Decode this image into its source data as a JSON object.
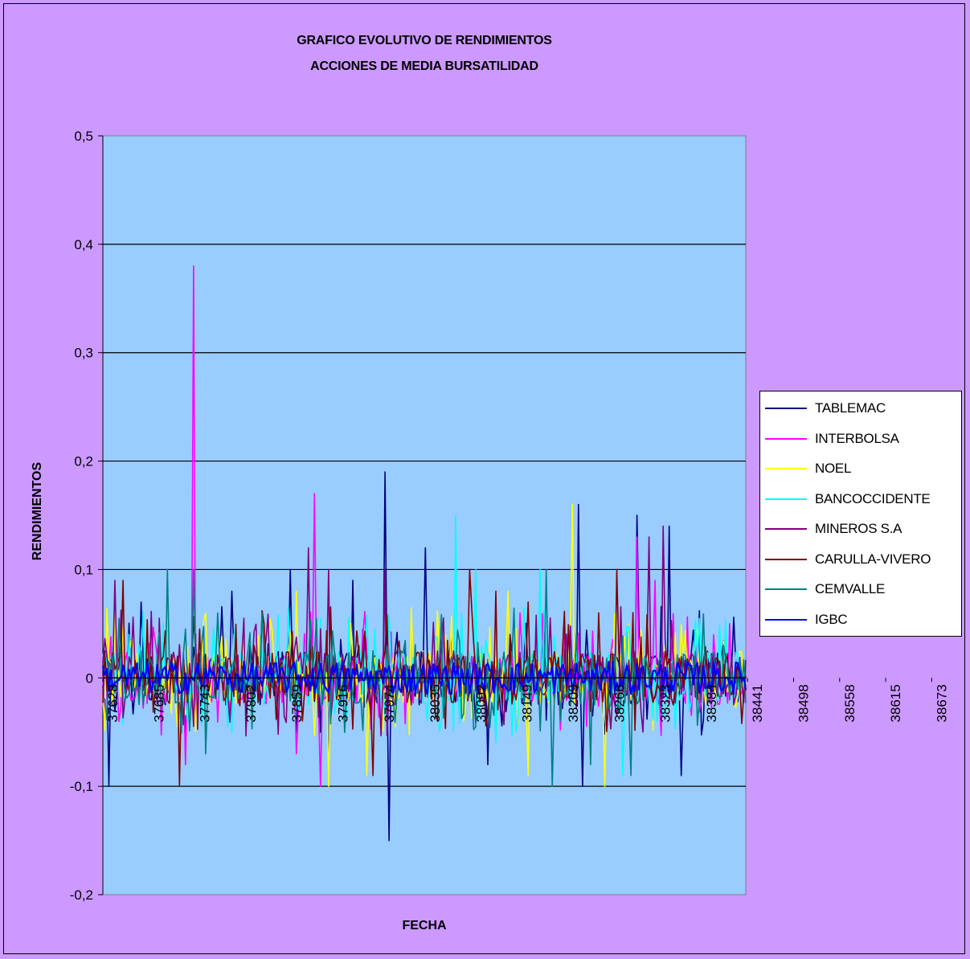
{
  "chart_data": {
    "type": "line",
    "title": "GRAFICO EVOLUTIVO DE RENDIMIENTOS",
    "subtitle": "ACCIONES DE MEDIA BURSATILIDAD",
    "xlabel": "FECHA",
    "ylabel": "RENDIMIENTOS",
    "ylim": [
      -0.2,
      0.5
    ],
    "yticks": [
      "0,5",
      "0,4",
      "0,3",
      "0,2",
      "0,1",
      "0",
      "-0,1",
      "-0,2"
    ],
    "xticks": [
      "37628",
      "37685",
      "37743",
      "37802",
      "37859",
      "37916",
      "37974",
      "38035",
      "38092",
      "38149",
      "38209",
      "38266",
      "38323",
      "38384",
      "38441",
      "38498",
      "38558",
      "38615",
      "38673"
    ],
    "grid": true,
    "legend_position": "right",
    "plot_background": "#99ccff",
    "series": [
      {
        "name": "TABLEMAC",
        "color": "#000080",
        "spikes": [
          [
            0.01,
            -0.1
          ],
          [
            0.06,
            0.07
          ],
          [
            0.13,
            -0.07
          ],
          [
            0.2,
            0.08
          ],
          [
            0.29,
            0.1
          ],
          [
            0.35,
            -0.09
          ],
          [
            0.39,
            0.09
          ],
          [
            0.44,
            0.19
          ],
          [
            0.445,
            -0.15
          ],
          [
            0.5,
            0.12
          ],
          [
            0.6,
            -0.08
          ],
          [
            0.74,
            0.16
          ],
          [
            0.745,
            -0.1
          ],
          [
            0.83,
            0.15
          ],
          [
            0.88,
            0.14
          ],
          [
            0.9,
            -0.09
          ]
        ]
      },
      {
        "name": "INTERBOLSA",
        "color": "#ff00ff",
        "spikes": [
          [
            0.14,
            0.38
          ],
          [
            0.13,
            -0.08
          ],
          [
            0.3,
            -0.07
          ],
          [
            0.33,
            0.17
          ],
          [
            0.34,
            -0.1
          ],
          [
            0.65,
            0.06
          ],
          [
            0.83,
            0.13
          ],
          [
            0.86,
            0.09
          ]
        ]
      },
      {
        "name": "NOEL",
        "color": "#ffff00",
        "spikes": [
          [
            0.16,
            0.06
          ],
          [
            0.3,
            0.08
          ],
          [
            0.35,
            -0.1
          ],
          [
            0.41,
            -0.09
          ],
          [
            0.63,
            0.08
          ],
          [
            0.66,
            -0.09
          ],
          [
            0.73,
            0.16
          ],
          [
            0.78,
            -0.1
          ]
        ]
      },
      {
        "name": "BANCOCCIDENTE",
        "color": "#00ffff",
        "spikes": [
          [
            0.04,
            0.04
          ],
          [
            0.55,
            0.15
          ],
          [
            0.58,
            0.1
          ],
          [
            0.61,
            -0.06
          ],
          [
            0.68,
            0.1
          ],
          [
            0.81,
            -0.09
          ]
        ]
      },
      {
        "name": "MINEROS S.A",
        "color": "#800080",
        "spikes": [
          [
            0.02,
            0.09
          ],
          [
            0.32,
            0.12
          ],
          [
            0.35,
            0.1
          ],
          [
            0.44,
            0.1
          ],
          [
            0.85,
            0.13
          ],
          [
            0.87,
            0.14
          ],
          [
            0.84,
            -0.05
          ]
        ]
      },
      {
        "name": "CARULLA-VIVERO",
        "color": "#800000",
        "spikes": [
          [
            0.03,
            0.09
          ],
          [
            0.12,
            -0.1
          ],
          [
            0.25,
            0.05
          ],
          [
            0.42,
            -0.09
          ],
          [
            0.57,
            0.1
          ],
          [
            0.61,
            0.08
          ],
          [
            0.66,
            0.07
          ],
          [
            0.77,
            0.06
          ],
          [
            0.8,
            0.1
          ]
        ]
      },
      {
        "name": "CEMVALLE",
        "color": "#008080",
        "spikes": [
          [
            0.1,
            0.1
          ],
          [
            0.14,
            0.1
          ],
          [
            0.16,
            -0.07
          ],
          [
            0.69,
            0.1
          ],
          [
            0.7,
            -0.1
          ],
          [
            0.76,
            -0.08
          ],
          [
            0.82,
            -0.09
          ]
        ]
      },
      {
        "name": "IGBC",
        "color": "#0000ff",
        "spikes": []
      }
    ]
  }
}
